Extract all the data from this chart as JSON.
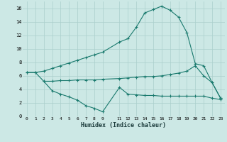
{
  "xlabel": "Humidex (Indice chaleur)",
  "background_color": "#cce8e5",
  "grid_color": "#aacfcc",
  "line_color": "#1a7a6e",
  "xlim": [
    -0.5,
    23.5
  ],
  "ylim": [
    0,
    17
  ],
  "xtick_pos": [
    0,
    1,
    2,
    3,
    4,
    5,
    6,
    7,
    8,
    9,
    11,
    12,
    13,
    14,
    15,
    16,
    17,
    18,
    19,
    20,
    21,
    22,
    23
  ],
  "xtick_labels": [
    "0",
    "1",
    "2",
    "3",
    "4",
    "5",
    "6",
    "7",
    "8",
    "9",
    "11",
    "12",
    "13",
    "14",
    "15",
    "16",
    "17",
    "18",
    "19",
    "20",
    "21",
    "22",
    "23"
  ],
  "ytick_pos": [
    0,
    2,
    4,
    6,
    8,
    10,
    12,
    14,
    16
  ],
  "ytick_labels": [
    "0",
    "2",
    "4",
    "6",
    "8",
    "10",
    "12",
    "14",
    "16"
  ],
  "curve_upper_x": [
    0,
    1,
    2,
    3,
    4,
    5,
    6,
    7,
    8,
    9,
    11,
    12,
    13,
    14,
    15,
    16,
    17,
    18,
    19,
    20,
    21,
    22,
    23
  ],
  "curve_upper_y": [
    6.5,
    6.5,
    6.7,
    7.1,
    7.5,
    7.9,
    8.3,
    8.7,
    9.1,
    9.5,
    11.0,
    11.5,
    13.2,
    15.3,
    15.8,
    16.3,
    15.7,
    14.7,
    12.4,
    7.8,
    7.5,
    5.0,
    2.7
  ],
  "curve_mid_x": [
    0,
    1,
    2,
    3,
    4,
    5,
    6,
    7,
    8,
    9,
    11,
    12,
    13,
    14,
    15,
    16,
    17,
    18,
    19,
    20,
    21,
    22,
    23
  ],
  "curve_mid_y": [
    6.5,
    6.5,
    5.2,
    5.2,
    5.3,
    5.3,
    5.4,
    5.4,
    5.4,
    5.5,
    5.6,
    5.7,
    5.8,
    5.9,
    5.9,
    6.0,
    6.2,
    6.4,
    6.7,
    7.5,
    6.0,
    5.0,
    2.7
  ],
  "curve_low_x": [
    2,
    3,
    4,
    5,
    6,
    7,
    8,
    9,
    11,
    12,
    13,
    14,
    15,
    16,
    17,
    18,
    19,
    20,
    21,
    22,
    23
  ],
  "curve_low_y": [
    5.2,
    3.8,
    3.3,
    2.9,
    2.4,
    1.6,
    1.2,
    0.7,
    4.3,
    3.3,
    3.2,
    3.1,
    3.1,
    3.0,
    3.0,
    3.0,
    3.0,
    3.0,
    3.0,
    2.7,
    2.5
  ]
}
